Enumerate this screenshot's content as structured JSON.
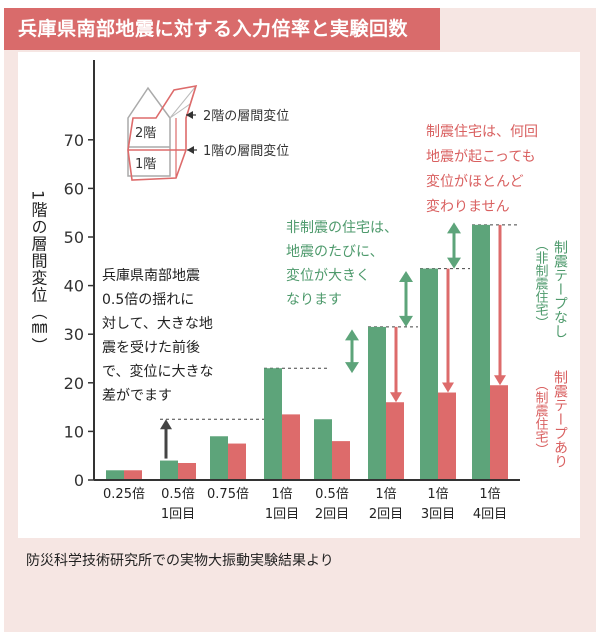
{
  "title": "兵庫県南部地震に対する入力倍率と実験回数",
  "source": "防災科学技術研究所での実物大振動実験結果より",
  "ylabel": "1階の層間変位（㎜）",
  "colors": {
    "green": "#5da47a",
    "red": "#dd6b6b",
    "title_bg": "#d96b6b",
    "panel_bg": "#f6e6e3",
    "axis": "#333333"
  },
  "inset": {
    "floor2": "2階",
    "floor1": "1階",
    "label2": "2階の層間変位",
    "label1": "1階の層間変位"
  },
  "annotations": {
    "left": [
      "兵庫県南部地震",
      "0.5倍の揺れに",
      "対して、大きな地",
      "震を受けた前後",
      "で、変位に大きな",
      "差がでます"
    ],
    "middle": [
      "非制震の住宅は、",
      "地震のたびに、",
      "変位が大きく",
      "なります"
    ],
    "right": [
      "制震住宅は、何回",
      "地震が起こっても",
      "変位がほとんど",
      "変わりません"
    ]
  },
  "legend": {
    "green_main": "制震テープなし",
    "green_sub": "（非制震住宅）",
    "red_main": "制震テープあり",
    "red_sub": "（制震住宅）"
  },
  "chart_data": {
    "type": "bar",
    "categories": [
      [
        "0.25倍",
        ""
      ],
      [
        "0.5倍",
        "1回目"
      ],
      [
        "0.75倍",
        ""
      ],
      [
        "1倍",
        "1回目"
      ],
      [
        "0.5倍",
        "2回目"
      ],
      [
        "1倍",
        "2回目"
      ],
      [
        "1倍",
        "3回目"
      ],
      [
        "1倍",
        "4回目"
      ]
    ],
    "series": [
      {
        "name": "制震テープなし（非制震住宅）",
        "color": "#5da47a",
        "values": [
          2,
          4,
          9,
          23,
          12.5,
          31.5,
          43.5,
          52.5
        ]
      },
      {
        "name": "制震テープあり（制震住宅）",
        "color": "#dd6b6b",
        "values": [
          2,
          3.5,
          7.5,
          13.5,
          8,
          16,
          18,
          19.5
        ]
      }
    ],
    "ylim": [
      0,
      80
    ],
    "yticks": [
      0,
      10,
      20,
      30,
      40,
      50,
      60,
      70
    ],
    "ylabel": "1階の層間変位（㎜）"
  }
}
